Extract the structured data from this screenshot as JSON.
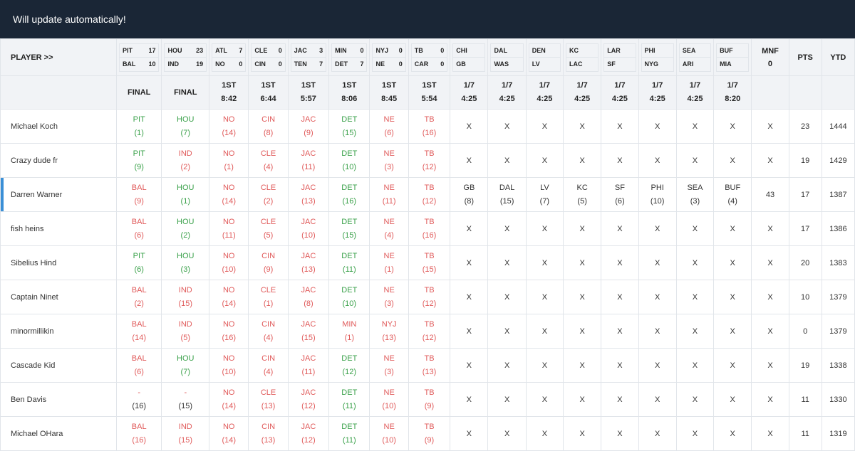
{
  "banner": {
    "text": "Will update automatically!"
  },
  "header": {
    "player_label": "PLAYER >>",
    "mnf_label": "MNF",
    "mnf_value": "0",
    "pts_label": "PTS",
    "ytd_label": "YTD"
  },
  "games": [
    {
      "away": "PIT",
      "away_score": "17",
      "home": "BAL",
      "home_score": "10",
      "status": [
        "FINAL"
      ]
    },
    {
      "away": "HOU",
      "away_score": "23",
      "home": "IND",
      "home_score": "19",
      "status": [
        "FINAL"
      ]
    },
    {
      "away": "ATL",
      "away_score": "7",
      "home": "NO",
      "home_score": "0",
      "status": [
        "1ST",
        "8:42"
      ]
    },
    {
      "away": "CLE",
      "away_score": "0",
      "home": "CIN",
      "home_score": "0",
      "status": [
        "1ST",
        "6:44"
      ]
    },
    {
      "away": "JAC",
      "away_score": "3",
      "home": "TEN",
      "home_score": "7",
      "status": [
        "1ST",
        "5:57"
      ]
    },
    {
      "away": "MIN",
      "away_score": "0",
      "home": "DET",
      "home_score": "7",
      "status": [
        "1ST",
        "8:06"
      ]
    },
    {
      "away": "NYJ",
      "away_score": "0",
      "home": "NE",
      "home_score": "0",
      "status": [
        "1ST",
        "8:45"
      ]
    },
    {
      "away": "TB",
      "away_score": "0",
      "home": "CAR",
      "home_score": "0",
      "status": [
        "1ST",
        "5:54"
      ]
    },
    {
      "away": "CHI",
      "away_score": "",
      "home": "GB",
      "home_score": "",
      "status": [
        "1/7",
        "4:25"
      ]
    },
    {
      "away": "DAL",
      "away_score": "",
      "home": "WAS",
      "home_score": "",
      "status": [
        "1/7",
        "4:25"
      ]
    },
    {
      "away": "DEN",
      "away_score": "",
      "home": "LV",
      "home_score": "",
      "status": [
        "1/7",
        "4:25"
      ]
    },
    {
      "away": "KC",
      "away_score": "",
      "home": "LAC",
      "home_score": "",
      "status": [
        "1/7",
        "4:25"
      ]
    },
    {
      "away": "LAR",
      "away_score": "",
      "home": "SF",
      "home_score": "",
      "status": [
        "1/7",
        "4:25"
      ]
    },
    {
      "away": "PHI",
      "away_score": "",
      "home": "NYG",
      "home_score": "",
      "status": [
        "1/7",
        "4:25"
      ]
    },
    {
      "away": "SEA",
      "away_score": "",
      "home": "ARI",
      "home_score": "",
      "status": [
        "1/7",
        "4:25"
      ]
    },
    {
      "away": "BUF",
      "away_score": "",
      "home": "MIA",
      "home_score": "",
      "status": [
        "1/7",
        "8:20"
      ]
    }
  ],
  "colors": {
    "banner": "#1a2636",
    "correct": "#3aa14a",
    "wrong": "#e05a5a",
    "highlight": "#3a8fd6",
    "header_bg": "#f1f3f6"
  },
  "players": [
    {
      "name": "Michael Koch",
      "highlight": false,
      "picks": [
        [
          "PIT",
          "(1)",
          "correct"
        ],
        [
          "HOU",
          "(7)",
          "correct"
        ],
        [
          "NO",
          "(14)",
          "wrong"
        ],
        [
          "CIN",
          "(8)",
          "wrong"
        ],
        [
          "JAC",
          "(9)",
          "wrong"
        ],
        [
          "DET",
          "(15)",
          "correct"
        ],
        [
          "NE",
          "(6)",
          "wrong"
        ],
        [
          "TB",
          "(16)",
          "wrong"
        ],
        [
          "X"
        ],
        [
          "X"
        ],
        [
          "X"
        ],
        [
          "X"
        ],
        [
          "X"
        ],
        [
          "X"
        ],
        [
          "X"
        ],
        [
          "X"
        ]
      ],
      "mnf": "X",
      "pts": "23",
      "ytd": "1444"
    },
    {
      "name": "Crazy dude fr",
      "highlight": false,
      "picks": [
        [
          "PIT",
          "(9)",
          "correct"
        ],
        [
          "IND",
          "(2)",
          "wrong"
        ],
        [
          "NO",
          "(1)",
          "wrong"
        ],
        [
          "CLE",
          "(4)",
          "wrong"
        ],
        [
          "JAC",
          "(11)",
          "wrong"
        ],
        [
          "DET",
          "(10)",
          "correct"
        ],
        [
          "NE",
          "(3)",
          "wrong"
        ],
        [
          "TB",
          "(12)",
          "wrong"
        ],
        [
          "X"
        ],
        [
          "X"
        ],
        [
          "X"
        ],
        [
          "X"
        ],
        [
          "X"
        ],
        [
          "X"
        ],
        [
          "X"
        ],
        [
          "X"
        ]
      ],
      "mnf": "X",
      "pts": "19",
      "ytd": "1429"
    },
    {
      "name": "Darren Warner",
      "highlight": true,
      "picks": [
        [
          "BAL",
          "(9)",
          "wrong"
        ],
        [
          "HOU",
          "(1)",
          "correct"
        ],
        [
          "NO",
          "(14)",
          "wrong"
        ],
        [
          "CLE",
          "(2)",
          "wrong"
        ],
        [
          "JAC",
          "(13)",
          "wrong"
        ],
        [
          "DET",
          "(16)",
          "correct"
        ],
        [
          "NE",
          "(11)",
          "wrong"
        ],
        [
          "TB",
          "(12)",
          "wrong"
        ],
        [
          "GB",
          "(8)",
          "neutral"
        ],
        [
          "DAL",
          "(15)",
          "neutral"
        ],
        [
          "LV",
          "(7)",
          "neutral"
        ],
        [
          "KC",
          "(5)",
          "neutral"
        ],
        [
          "SF",
          "(6)",
          "neutral"
        ],
        [
          "PHI",
          "(10)",
          "neutral"
        ],
        [
          "SEA",
          "(3)",
          "neutral"
        ],
        [
          "BUF",
          "(4)",
          "neutral"
        ]
      ],
      "mnf": "43",
      "pts": "17",
      "ytd": "1387"
    },
    {
      "name": "fish heins",
      "highlight": false,
      "picks": [
        [
          "BAL",
          "(6)",
          "wrong"
        ],
        [
          "HOU",
          "(2)",
          "correct"
        ],
        [
          "NO",
          "(11)",
          "wrong"
        ],
        [
          "CLE",
          "(5)",
          "wrong"
        ],
        [
          "JAC",
          "(10)",
          "wrong"
        ],
        [
          "DET",
          "(15)",
          "correct"
        ],
        [
          "NE",
          "(4)",
          "wrong"
        ],
        [
          "TB",
          "(16)",
          "wrong"
        ],
        [
          "X"
        ],
        [
          "X"
        ],
        [
          "X"
        ],
        [
          "X"
        ],
        [
          "X"
        ],
        [
          "X"
        ],
        [
          "X"
        ],
        [
          "X"
        ]
      ],
      "mnf": "X",
      "pts": "17",
      "ytd": "1386"
    },
    {
      "name": "Sibelius Hind",
      "highlight": false,
      "picks": [
        [
          "PIT",
          "(6)",
          "correct"
        ],
        [
          "HOU",
          "(3)",
          "correct"
        ],
        [
          "NO",
          "(10)",
          "wrong"
        ],
        [
          "CIN",
          "(9)",
          "wrong"
        ],
        [
          "JAC",
          "(13)",
          "wrong"
        ],
        [
          "DET",
          "(11)",
          "correct"
        ],
        [
          "NE",
          "(1)",
          "wrong"
        ],
        [
          "TB",
          "(15)",
          "wrong"
        ],
        [
          "X"
        ],
        [
          "X"
        ],
        [
          "X"
        ],
        [
          "X"
        ],
        [
          "X"
        ],
        [
          "X"
        ],
        [
          "X"
        ],
        [
          "X"
        ]
      ],
      "mnf": "X",
      "pts": "20",
      "ytd": "1383"
    },
    {
      "name": "Captain Ninet",
      "highlight": false,
      "picks": [
        [
          "BAL",
          "(2)",
          "wrong"
        ],
        [
          "IND",
          "(15)",
          "wrong"
        ],
        [
          "NO",
          "(14)",
          "wrong"
        ],
        [
          "CLE",
          "(1)",
          "wrong"
        ],
        [
          "JAC",
          "(8)",
          "wrong"
        ],
        [
          "DET",
          "(10)",
          "correct"
        ],
        [
          "NE",
          "(3)",
          "wrong"
        ],
        [
          "TB",
          "(12)",
          "wrong"
        ],
        [
          "X"
        ],
        [
          "X"
        ],
        [
          "X"
        ],
        [
          "X"
        ],
        [
          "X"
        ],
        [
          "X"
        ],
        [
          "X"
        ],
        [
          "X"
        ]
      ],
      "mnf": "X",
      "pts": "10",
      "ytd": "1379"
    },
    {
      "name": "minormillikin",
      "highlight": false,
      "picks": [
        [
          "BAL",
          "(14)",
          "wrong"
        ],
        [
          "IND",
          "(5)",
          "wrong"
        ],
        [
          "NO",
          "(16)",
          "wrong"
        ],
        [
          "CIN",
          "(4)",
          "wrong"
        ],
        [
          "JAC",
          "(15)",
          "wrong"
        ],
        [
          "MIN",
          "(1)",
          "wrong"
        ],
        [
          "NYJ",
          "(13)",
          "wrong"
        ],
        [
          "TB",
          "(12)",
          "wrong"
        ],
        [
          "X"
        ],
        [
          "X"
        ],
        [
          "X"
        ],
        [
          "X"
        ],
        [
          "X"
        ],
        [
          "X"
        ],
        [
          "X"
        ],
        [
          "X"
        ]
      ],
      "mnf": "X",
      "pts": "0",
      "ytd": "1379"
    },
    {
      "name": "Cascade Kid",
      "highlight": false,
      "picks": [
        [
          "BAL",
          "(6)",
          "wrong"
        ],
        [
          "HOU",
          "(7)",
          "correct"
        ],
        [
          "NO",
          "(10)",
          "wrong"
        ],
        [
          "CIN",
          "(4)",
          "wrong"
        ],
        [
          "JAC",
          "(11)",
          "wrong"
        ],
        [
          "DET",
          "(12)",
          "correct"
        ],
        [
          "NE",
          "(3)",
          "wrong"
        ],
        [
          "TB",
          "(13)",
          "wrong"
        ],
        [
          "X"
        ],
        [
          "X"
        ],
        [
          "X"
        ],
        [
          "X"
        ],
        [
          "X"
        ],
        [
          "X"
        ],
        [
          "X"
        ],
        [
          "X"
        ]
      ],
      "mnf": "X",
      "pts": "19",
      "ytd": "1338"
    },
    {
      "name": "Ben Davis",
      "highlight": false,
      "picks": [
        [
          "-",
          "(16)",
          "dash"
        ],
        [
          "-",
          "(15)",
          "dash"
        ],
        [
          "NO",
          "(14)",
          "wrong"
        ],
        [
          "CLE",
          "(13)",
          "wrong"
        ],
        [
          "JAC",
          "(12)",
          "wrong"
        ],
        [
          "DET",
          "(11)",
          "correct"
        ],
        [
          "NE",
          "(10)",
          "wrong"
        ],
        [
          "TB",
          "(9)",
          "wrong"
        ],
        [
          "X"
        ],
        [
          "X"
        ],
        [
          "X"
        ],
        [
          "X"
        ],
        [
          "X"
        ],
        [
          "X"
        ],
        [
          "X"
        ],
        [
          "X"
        ]
      ],
      "mnf": "X",
      "pts": "11",
      "ytd": "1330"
    },
    {
      "name": "Michael OHara",
      "highlight": false,
      "picks": [
        [
          "BAL",
          "(16)",
          "wrong"
        ],
        [
          "IND",
          "(15)",
          "wrong"
        ],
        [
          "NO",
          "(14)",
          "wrong"
        ],
        [
          "CIN",
          "(13)",
          "wrong"
        ],
        [
          "JAC",
          "(12)",
          "wrong"
        ],
        [
          "DET",
          "(11)",
          "correct"
        ],
        [
          "NE",
          "(10)",
          "wrong"
        ],
        [
          "TB",
          "(9)",
          "wrong"
        ],
        [
          "X"
        ],
        [
          "X"
        ],
        [
          "X"
        ],
        [
          "X"
        ],
        [
          "X"
        ],
        [
          "X"
        ],
        [
          "X"
        ],
        [
          "X"
        ]
      ],
      "mnf": "X",
      "pts": "11",
      "ytd": "1319"
    }
  ]
}
